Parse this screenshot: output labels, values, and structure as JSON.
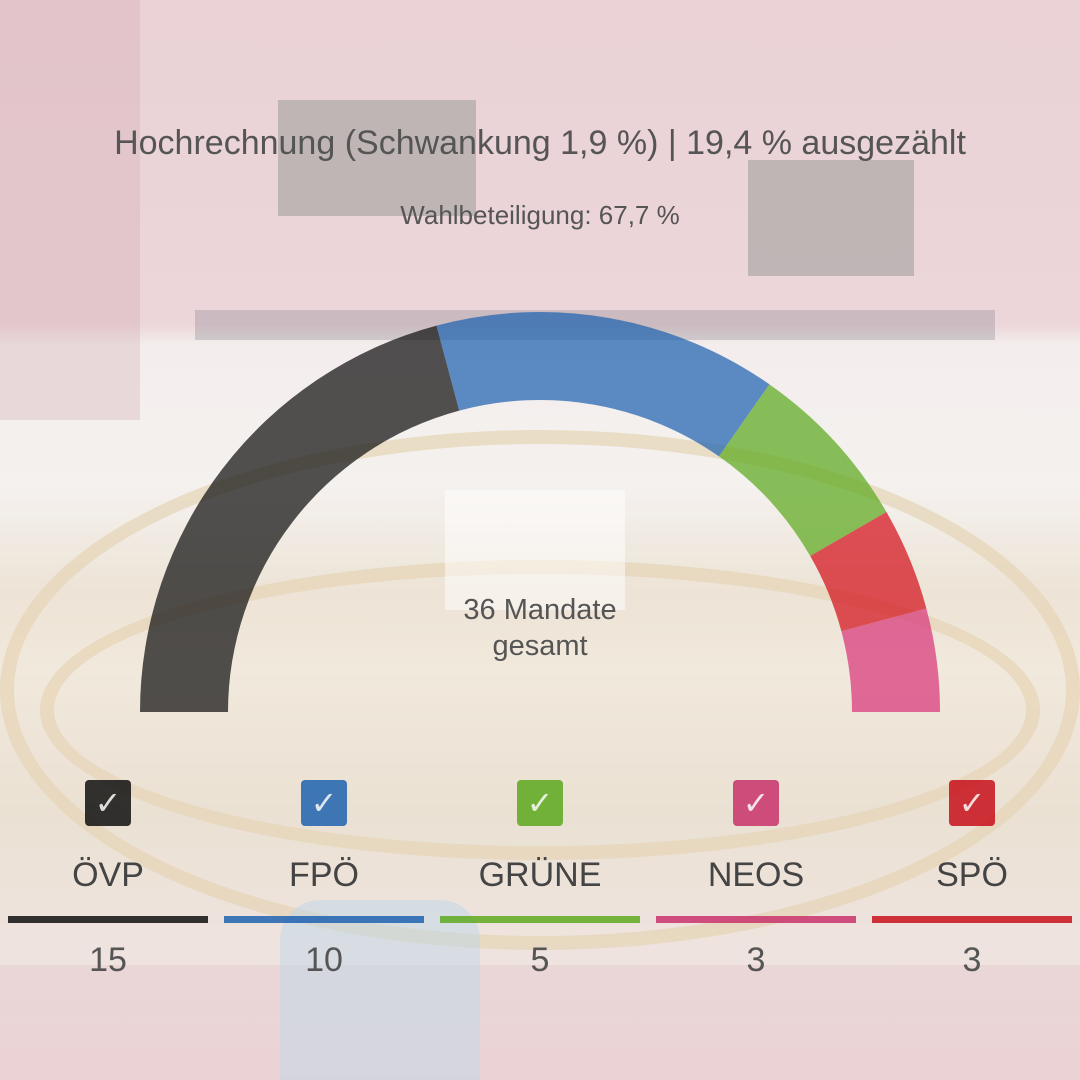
{
  "header": {
    "title": "Hochrechnung (Schwankung 1,9 %) | 19,4 % ausgezählt",
    "subtitle": "Wahlbeteiligung: 67,7 %"
  },
  "center_label": {
    "line1": "36 Mandate",
    "line2": "gesamt"
  },
  "chart_data": {
    "type": "pie",
    "variant": "semicircle-parliament",
    "total": 36,
    "slices": [
      {
        "name": "ÖVP",
        "value": 15,
        "color": "#111111"
      },
      {
        "name": "FPÖ",
        "value": 10,
        "color": "#1f63b0"
      },
      {
        "name": "GRÜNE",
        "value": 5,
        "color": "#5da91e"
      },
      {
        "name": "SPÖ",
        "value": 3,
        "color": "#d4111c"
      },
      {
        "name": "NEOS",
        "value": 3,
        "color": "#d8367a"
      }
    ]
  },
  "legend": [
    {
      "name": "ÖVP",
      "value": "15",
      "color": "#111111",
      "checked": true,
      "check": "✓"
    },
    {
      "name": "FPÖ",
      "value": "10",
      "color": "#1f63b0",
      "checked": true,
      "check": "✓"
    },
    {
      "name": "GRÜNE",
      "value": "5",
      "color": "#5da91e",
      "checked": true,
      "check": "✓"
    },
    {
      "name": "NEOS",
      "value": "3",
      "color": "#c8336b",
      "checked": true,
      "check": "✓"
    },
    {
      "name": "SPÖ",
      "value": "3",
      "color": "#c8101b",
      "checked": true,
      "check": "✓"
    }
  ]
}
